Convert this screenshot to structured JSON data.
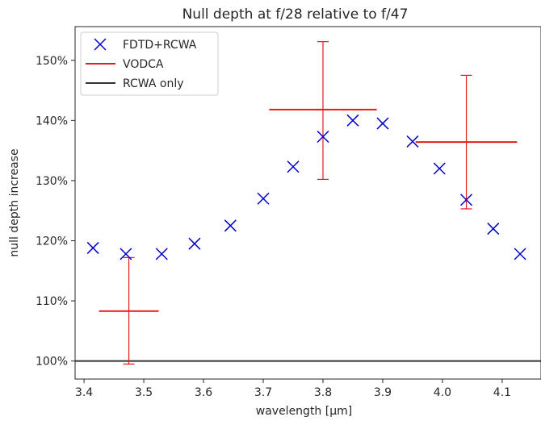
{
  "chart_data": {
    "type": "scatter",
    "title": "Null depth at f/28 relative to f/47",
    "xlabel": "wavelength [μm]",
    "ylabel": "null depth increase",
    "xlim": [
      3.385,
      4.165
    ],
    "ylim": [
      97.0,
      155.6
    ],
    "x_ticks": [
      3.4,
      3.5,
      3.6,
      3.7,
      3.8,
      3.9,
      4.0,
      4.1
    ],
    "x_tick_labels": [
      "3.4",
      "3.5",
      "3.6",
      "3.7",
      "3.8",
      "3.9",
      "4.0",
      "4.1"
    ],
    "y_ticks": [
      100,
      110,
      120,
      130,
      140,
      150
    ],
    "y_tick_labels": [
      "100%",
      "110%",
      "120%",
      "130%",
      "140%",
      "150%"
    ],
    "grid": false,
    "legend": {
      "position": "top-left",
      "entries": [
        "FDTD+RCWA",
        "VODCA",
        "RCWA only"
      ]
    },
    "series": [
      {
        "name": "FDTD+RCWA",
        "kind": "scatter",
        "marker": "x",
        "color": "#0000cc",
        "x": [
          3.415,
          3.47,
          3.53,
          3.585,
          3.645,
          3.7,
          3.75,
          3.8,
          3.85,
          3.9,
          3.95,
          3.995,
          4.04,
          4.085,
          4.13
        ],
        "y": [
          118.8,
          117.8,
          117.8,
          119.5,
          122.5,
          127.0,
          132.3,
          137.3,
          140.0,
          139.5,
          136.5,
          132.0,
          126.8,
          122.0,
          117.8
        ]
      },
      {
        "name": "VODCA",
        "kind": "errorbar",
        "color": "#e41a1c",
        "points": [
          {
            "x": 3.475,
            "x_err": 0.05,
            "y": 108.3,
            "y_low": 99.5,
            "y_high": 117.2
          },
          {
            "x": 3.8,
            "x_err": 0.09,
            "y": 141.8,
            "y_low": 130.2,
            "y_high": 153.1
          },
          {
            "x": 4.04,
            "x_err": 0.085,
            "y": 136.4,
            "y_low": 125.3,
            "y_high": 147.5
          }
        ]
      },
      {
        "name": "RCWA only",
        "kind": "hline",
        "color": "#333333",
        "y": 100.0
      }
    ]
  }
}
